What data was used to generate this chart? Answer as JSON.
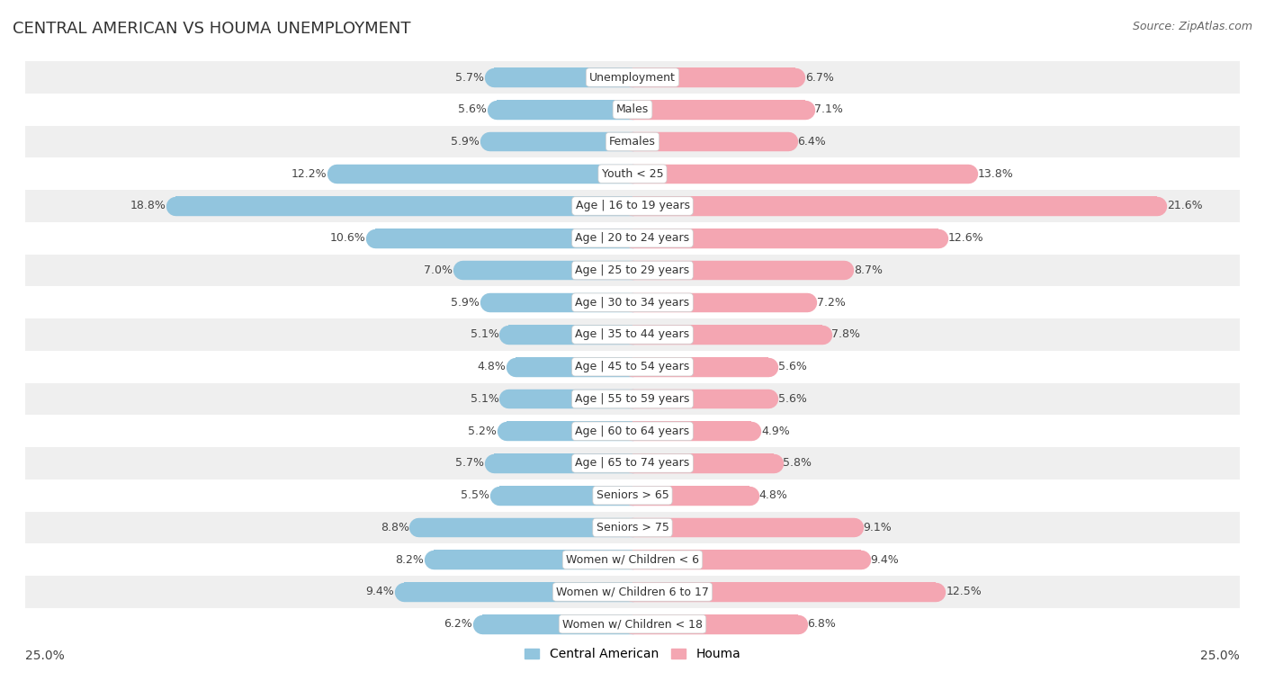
{
  "title": "CENTRAL AMERICAN VS HOUMA UNEMPLOYMENT",
  "source": "Source: ZipAtlas.com",
  "categories": [
    "Unemployment",
    "Males",
    "Females",
    "Youth < 25",
    "Age | 16 to 19 years",
    "Age | 20 to 24 years",
    "Age | 25 to 29 years",
    "Age | 30 to 34 years",
    "Age | 35 to 44 years",
    "Age | 45 to 54 years",
    "Age | 55 to 59 years",
    "Age | 60 to 64 years",
    "Age | 65 to 74 years",
    "Seniors > 65",
    "Seniors > 75",
    "Women w/ Children < 6",
    "Women w/ Children 6 to 17",
    "Women w/ Children < 18"
  ],
  "central_american": [
    5.7,
    5.6,
    5.9,
    12.2,
    18.8,
    10.6,
    7.0,
    5.9,
    5.1,
    4.8,
    5.1,
    5.2,
    5.7,
    5.5,
    8.8,
    8.2,
    9.4,
    6.2
  ],
  "houma": [
    6.7,
    7.1,
    6.4,
    13.8,
    21.6,
    12.6,
    8.7,
    7.2,
    7.8,
    5.6,
    5.6,
    4.9,
    5.8,
    4.8,
    9.1,
    9.4,
    12.5,
    6.8
  ],
  "color_central": "#92c5de",
  "color_houma": "#f4a6b2",
  "background_row_light": "#efefef",
  "background_row_dark": "#ffffff",
  "xlim": 25.0,
  "label_fontsize": 9,
  "title_fontsize": 13,
  "source_fontsize": 9,
  "bar_height": 0.6
}
